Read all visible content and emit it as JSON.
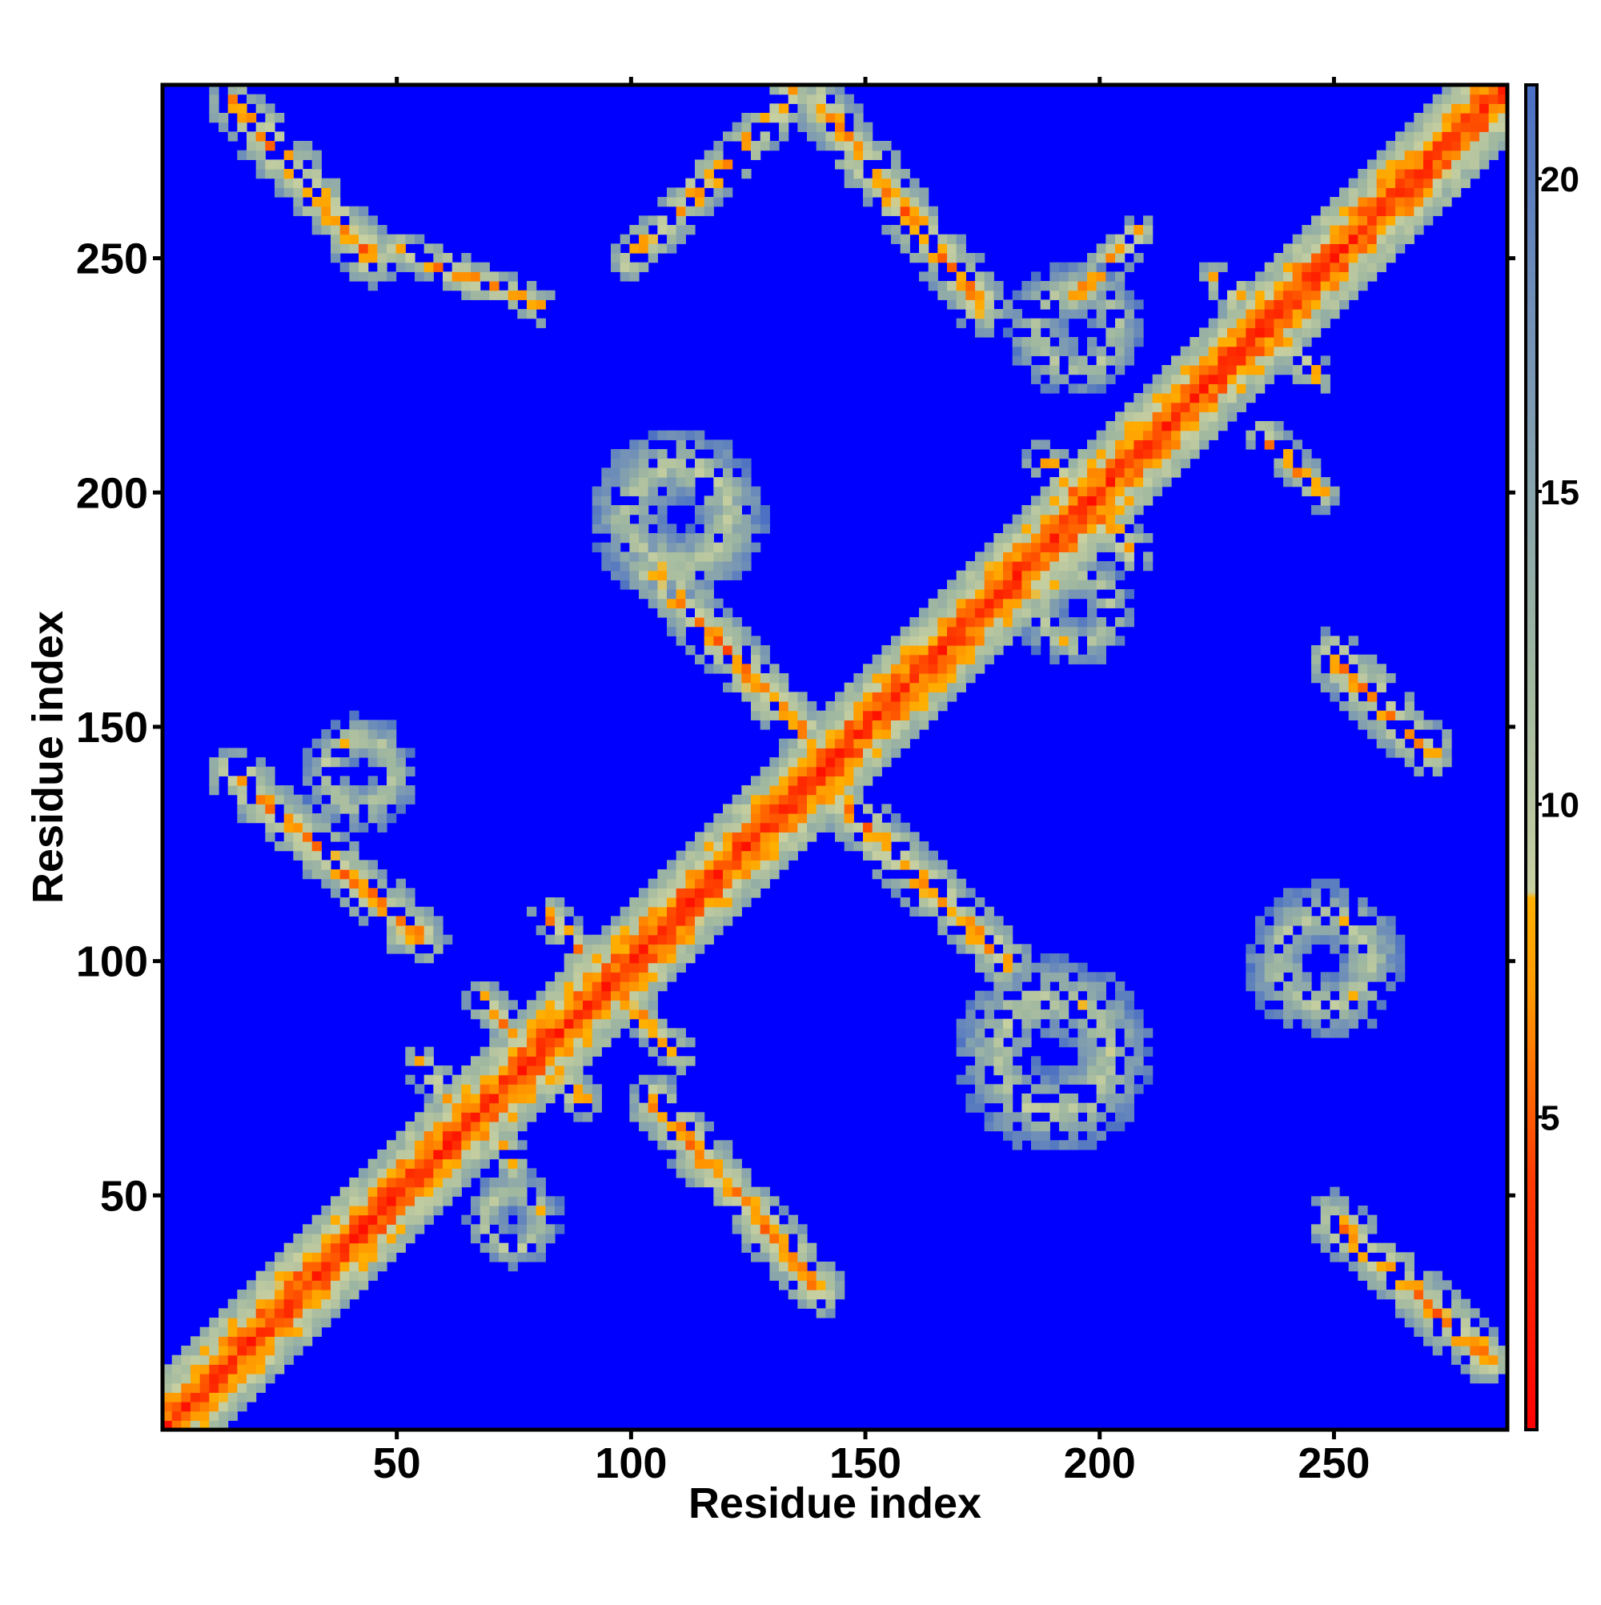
{
  "chart_data": {
    "type": "heatmap",
    "title": "",
    "xlabel": "Residue index",
    "ylabel": "Residue index",
    "xlim": [
      0,
      287
    ],
    "ylim": [
      0,
      287
    ],
    "x_ticks": [
      50,
      100,
      150,
      200,
      250
    ],
    "y_ticks": [
      50,
      100,
      150,
      200,
      250
    ],
    "colorbar": {
      "range": [
        0,
        21.5
      ],
      "ticks": [
        5,
        10,
        15,
        20
      ],
      "stops": [
        {
          "value": 0,
          "color": "#ff0000"
        },
        {
          "value": 4,
          "color": "#ff3a00"
        },
        {
          "value": 7,
          "color": "#ff9a00"
        },
        {
          "value": 8.5,
          "color": "#ffb000"
        },
        {
          "value": 8.6,
          "color": "#c8d0a0"
        },
        {
          "value": 12,
          "color": "#a0b8a0"
        },
        {
          "value": 18,
          "color": "#6f8fb8"
        },
        {
          "value": 21.5,
          "color": "#4a6fc4"
        }
      ]
    },
    "background_value": 21.5,
    "background_color": "#0000ff",
    "grid": false,
    "legend": "colorbar-right",
    "contact_features": [
      {
        "kind": "diagonal",
        "from": [
          0,
          0
        ],
        "to": [
          287,
          287
        ],
        "core_value": 2,
        "halo_width": 9
      },
      {
        "kind": "antiparallel",
        "from": [
          55,
          78
        ],
        "to": [
          75,
          57
        ],
        "halo_width": 4
      },
      {
        "kind": "antiparallel",
        "from": [
          68,
          92
        ],
        "to": [
          90,
          70
        ],
        "halo_width": 4
      },
      {
        "kind": "antiparallel",
        "from": [
          82,
          110
        ],
        "to": [
          110,
          80
        ],
        "halo_width": 4
      },
      {
        "kind": "antiparallel",
        "from": [
          188,
          207
        ],
        "to": [
          208,
          187
        ],
        "halo_width": 4
      },
      {
        "kind": "antiparallel",
        "from": [
          225,
          246
        ],
        "to": [
          246,
          225
        ],
        "halo_width": 4
      },
      {
        "kind": "antiparallel",
        "from": [
          105,
          183
        ],
        "to": [
          145,
          140
        ],
        "halo_width": 6
      },
      {
        "kind": "antiparallel",
        "from": [
          138,
          140
        ],
        "to": [
          180,
          100
        ],
        "halo_width": 6
      },
      {
        "kind": "antiparallel",
        "from": [
          208,
          255
        ],
        "to": [
          195,
          242
        ],
        "halo_width": 4
      },
      {
        "kind": "antiparallel",
        "from": [
          247,
          200
        ],
        "to": [
          235,
          212
        ],
        "halo_width": 4
      },
      {
        "kind": "antiparallel",
        "from": [
          15,
          283
        ],
        "to": [
          45,
          250
        ],
        "halo_width": 6
      },
      {
        "kind": "antiparallel",
        "from": [
          283,
          15
        ],
        "to": [
          250,
          45
        ],
        "halo_width": 6
      },
      {
        "kind": "antiparallel",
        "from": [
          15,
          140
        ],
        "to": [
          55,
          105
        ],
        "halo_width": 6
      },
      {
        "kind": "antiparallel",
        "from": [
          270,
          145
        ],
        "to": [
          250,
          165
        ],
        "halo_width": 6
      },
      {
        "kind": "antiparallel",
        "from": [
          105,
          70
        ],
        "to": [
          140,
          30
        ],
        "halo_width": 6
      },
      {
        "kind": "antiparallel",
        "from": [
          140,
          283
        ],
        "to": [
          175,
          240
        ],
        "halo_width": 6
      },
      {
        "kind": "antiparallel",
        "from": [
          50,
          252
        ],
        "to": [
          80,
          240
        ],
        "halo_width": 4
      },
      {
        "kind": "antiparallel",
        "from": [
          100,
          250
        ],
        "to": [
          135,
          285
        ],
        "halo_width": 5
      },
      {
        "kind": "cluster",
        "center": [
          110,
          195
        ],
        "radius": 18
      },
      {
        "kind": "cluster",
        "center": [
          190,
          80
        ],
        "radius": 20
      },
      {
        "kind": "cluster",
        "center": [
          75,
          45
        ],
        "radius": 10
      },
      {
        "kind": "cluster",
        "center": [
          42,
          140
        ],
        "radius": 12
      },
      {
        "kind": "cluster",
        "center": [
          248,
          100
        ],
        "radius": 16
      },
      {
        "kind": "cluster",
        "center": [
          195,
          235
        ],
        "radius": 14
      },
      {
        "kind": "cluster",
        "center": [
          195,
          175
        ],
        "radius": 12
      }
    ]
  }
}
